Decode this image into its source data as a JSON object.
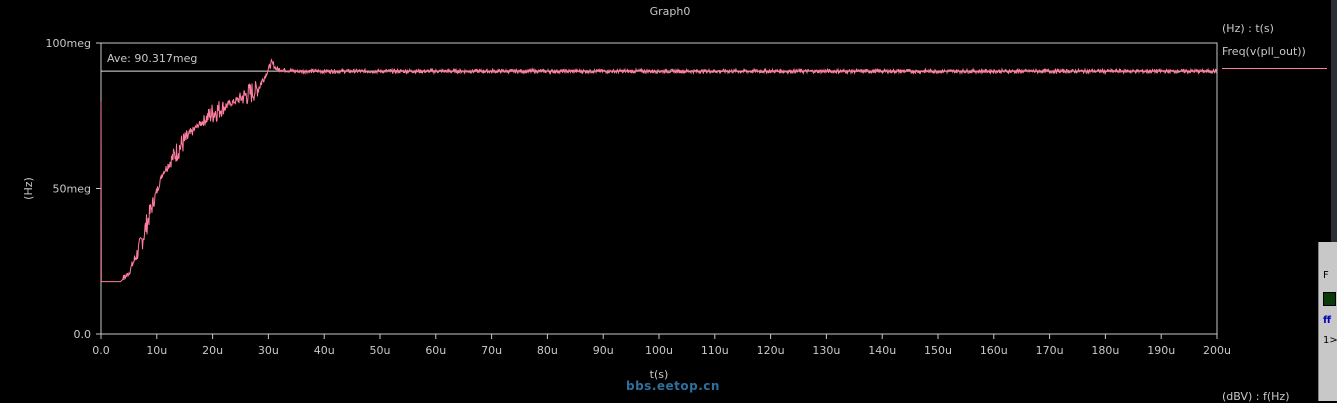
{
  "window": {
    "graph_title": "Graph0",
    "y_unit_label": "(Hz) : t(s)",
    "legend_label": "Freq(v(pll_out))",
    "bottom_unit_label": "(dBV) : f(Hz)",
    "watermark": "bbs.eetop.cn",
    "ave_marker": "Ave: 90.317meg",
    "side_panel_labels": [
      "F",
      "ff",
      "1>"
    ]
  },
  "colors": {
    "background": "#000000",
    "trace": "#ff7d9e",
    "axis": "#c8c8c8"
  },
  "chart_data": {
    "type": "line",
    "title": "Graph0",
    "xlabel": "t(s)",
    "ylabel": "(Hz)",
    "xlim": [
      0,
      200
    ],
    "ylim": [
      0,
      100
    ],
    "x_ticks": [
      "0.0",
      "10u",
      "20u",
      "30u",
      "40u",
      "50u",
      "60u",
      "70u",
      "80u",
      "90u",
      "100u",
      "110u",
      "120u",
      "130u",
      "140u",
      "150u",
      "160u",
      "170u",
      "180u",
      "190u",
      "200u"
    ],
    "y_ticks": [
      "0.0",
      "50meg",
      "100meg"
    ],
    "ave_level": 90.317,
    "series": [
      {
        "name": "Freq(v(pll_out))",
        "x": [
          0,
          0.01,
          0.02,
          3.5,
          5,
          7,
          9,
          11,
          14,
          17,
          20,
          23,
          26,
          28,
          29.5,
          30.5,
          31.5,
          35,
          60,
          100,
          150,
          200
        ],
        "y": [
          80,
          50,
          18,
          18,
          21,
          30,
          43,
          55,
          64,
          71,
          76,
          79,
          82,
          84,
          89,
          93,
          91,
          90.3,
          90.3,
          90.3,
          90.3,
          90.3
        ]
      }
    ]
  }
}
